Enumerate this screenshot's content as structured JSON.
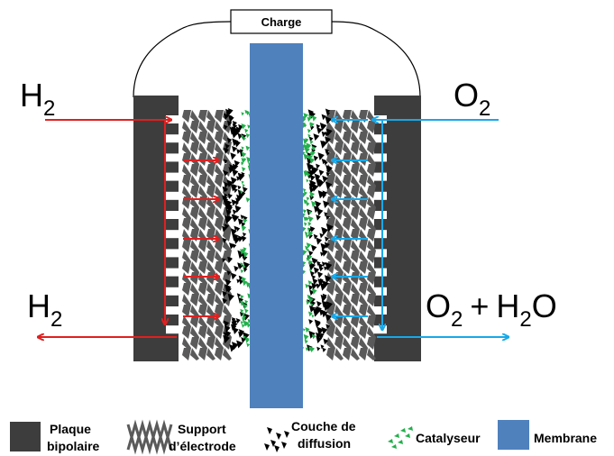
{
  "load": {
    "label": "Charge"
  },
  "anode": {
    "gas_in": {
      "base": "H",
      "sub": "2"
    },
    "gas_out": {
      "base": "H",
      "sub": "2"
    },
    "arrow_color": "#e02020"
  },
  "cathode": {
    "gas_in": {
      "base": "O",
      "sub": "2"
    },
    "gas_out": {
      "base1": "O",
      "sub1": "2",
      "plus": "+",
      "base2": "H",
      "sub2": "2",
      "tail": "O"
    },
    "arrow_color": "#18a8e8"
  },
  "colors": {
    "bipolar_plate": "#3d3d3d",
    "electrode_support": "#5a5a5a",
    "diffusion_layer": "#000000",
    "catalyst": "#22b04b",
    "membrane": "#4f81bd"
  },
  "legend": [
    {
      "key": "bipolar_plate",
      "lines": [
        "Plaque",
        "bipolaire"
      ],
      "icon": "dark-square-icon"
    },
    {
      "key": "electrode_support",
      "lines": [
        "Support",
        "d’électrode"
      ],
      "icon": "zigzag-icon"
    },
    {
      "key": "diffusion_layer",
      "lines": [
        "Couche de",
        "diffusion"
      ],
      "icon": "black-flakes-icon"
    },
    {
      "key": "catalyst",
      "lines": [
        "Catalyseur"
      ],
      "icon": "green-flakes-icon"
    },
    {
      "key": "membrane",
      "lines": [
        "Membrane"
      ],
      "icon": "blue-square-icon"
    }
  ]
}
